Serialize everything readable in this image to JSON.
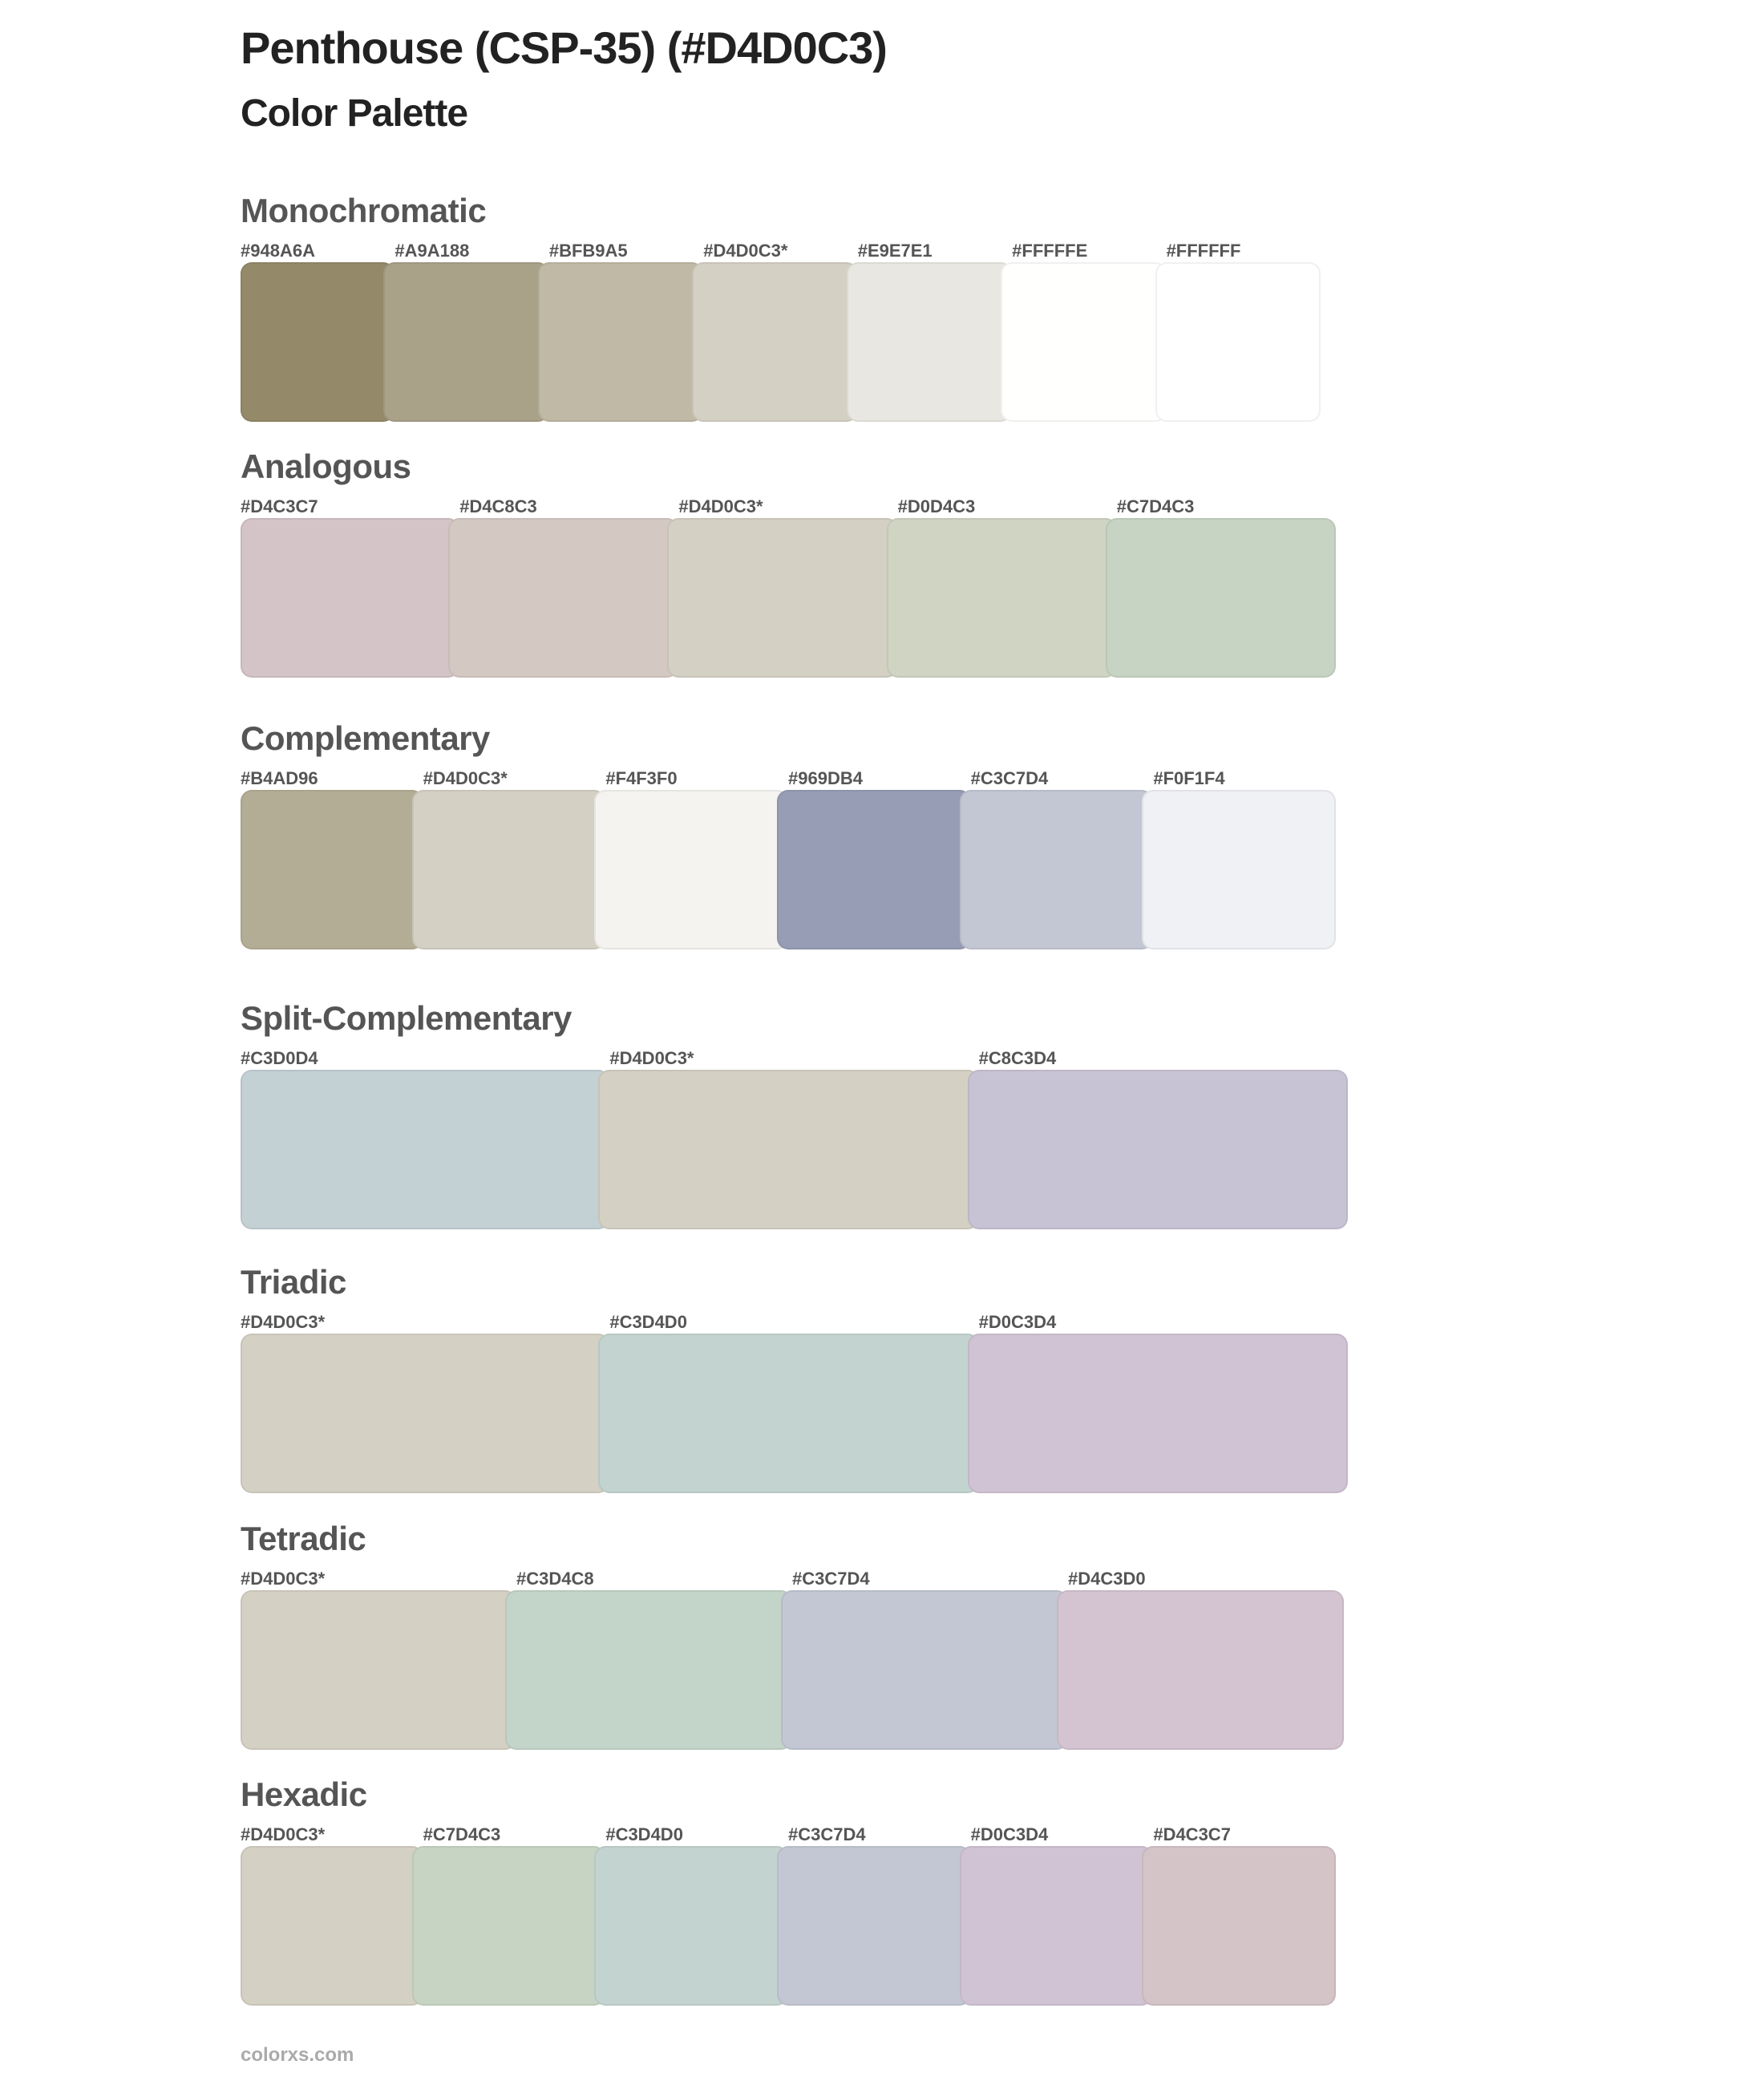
{
  "title": "Penthouse (CSP-35) (#D4D0C3)",
  "subtitle": "Color Palette",
  "sections": [
    {
      "name": "Monochromatic",
      "colors": [
        {
          "label": "#948A6A",
          "hex": "#948A6A"
        },
        {
          "label": "#A9A188",
          "hex": "#A9A188"
        },
        {
          "label": "#BFB9A5",
          "hex": "#BFB9A5"
        },
        {
          "label": "#D4D0C3*",
          "hex": "#D4D0C3"
        },
        {
          "label": "#E9E7E1",
          "hex": "#E9E7E1"
        },
        {
          "label": "#FFFFFE",
          "hex": "#FFFFFE"
        },
        {
          "label": "#FFFFFF",
          "hex": "#FFFFFF"
        }
      ]
    },
    {
      "name": "Analogous",
      "colors": [
        {
          "label": "#D4C3C7",
          "hex": "#D4C3C7"
        },
        {
          "label": "#D4C8C3",
          "hex": "#D4C8C3"
        },
        {
          "label": "#D4D0C3*",
          "hex": "#D4D0C3"
        },
        {
          "label": "#D0D4C3",
          "hex": "#D0D4C3"
        },
        {
          "label": "#C7D4C3",
          "hex": "#C7D4C3"
        }
      ]
    },
    {
      "name": "Complementary",
      "colors": [
        {
          "label": "#B4AD96",
          "hex": "#B4AD96"
        },
        {
          "label": "#D4D0C3*",
          "hex": "#D4D0C3"
        },
        {
          "label": "#F4F3F0",
          "hex": "#F4F3F0"
        },
        {
          "label": "#969DB4",
          "hex": "#969DB4"
        },
        {
          "label": "#C3C7D4",
          "hex": "#C3C7D4"
        },
        {
          "label": "#F0F1F4",
          "hex": "#F0F1F4"
        }
      ]
    },
    {
      "name": "Split-Complementary",
      "colors": [
        {
          "label": "#C3D0D4",
          "hex": "#C3D0D4"
        },
        {
          "label": "#D4D0C3*",
          "hex": "#D4D0C3"
        },
        {
          "label": "#C8C3D4",
          "hex": "#C8C3D4"
        }
      ]
    },
    {
      "name": "Triadic",
      "colors": [
        {
          "label": "#D4D0C3*",
          "hex": "#D4D0C3"
        },
        {
          "label": "#C3D4D0",
          "hex": "#C3D4D0"
        },
        {
          "label": "#D0C3D4",
          "hex": "#D0C3D4"
        }
      ]
    },
    {
      "name": "Tetradic",
      "colors": [
        {
          "label": "#D4D0C3*",
          "hex": "#D4D0C3"
        },
        {
          "label": "#C3D4C8",
          "hex": "#C3D4C8"
        },
        {
          "label": "#C3C7D4",
          "hex": "#C3C7D4"
        },
        {
          "label": "#D4C3D0",
          "hex": "#D4C3D0"
        }
      ]
    },
    {
      "name": "Hexadic",
      "colors": [
        {
          "label": "#D4D0C3*",
          "hex": "#D4D0C3"
        },
        {
          "label": "#C7D4C3",
          "hex": "#C7D4C3"
        },
        {
          "label": "#C3D4D0",
          "hex": "#C3D4D0"
        },
        {
          "label": "#C3C7D4",
          "hex": "#C3C7D4"
        },
        {
          "label": "#D0C3D4",
          "hex": "#D0C3D4"
        },
        {
          "label": "#D4C3C7",
          "hex": "#D4C3C7"
        }
      ]
    }
  ],
  "footer": "colorxs.com"
}
